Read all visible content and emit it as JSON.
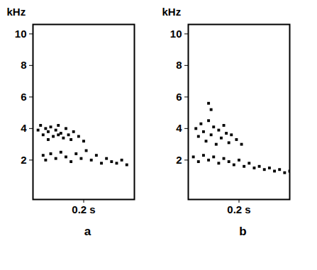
{
  "chart_data": [
    {
      "type": "scatter",
      "title": "a",
      "ylabel": "kHz",
      "color": "#000000",
      "marker": "square",
      "grid": false,
      "xlim": [
        0,
        0.4
      ],
      "xticks": [
        {
          "value": 0.2,
          "label": "0.2 s"
        }
      ],
      "ylim": [
        -0.5,
        10.6
      ],
      "yticks": [
        2,
        4,
        6,
        8,
        10
      ],
      "x": [
        0.02,
        0.03,
        0.04,
        0.05,
        0.06,
        0.07,
        0.08,
        0.09,
        0.1,
        0.11,
        0.12,
        0.13,
        0.14,
        0.15,
        0.16,
        0.18,
        0.2,
        0.06,
        0.1,
        0.04,
        0.05,
        0.07,
        0.09,
        0.11,
        0.13,
        0.15,
        0.17,
        0.19,
        0.21,
        0.23,
        0.25,
        0.27,
        0.29,
        0.31,
        0.33,
        0.35,
        0.37
      ],
      "values": [
        3.9,
        4.2,
        3.6,
        4.0,
        3.8,
        4.1,
        3.5,
        3.9,
        4.2,
        3.7,
        3.4,
        4.0,
        3.6,
        3.3,
        3.8,
        3.5,
        3.2,
        3.3,
        3.6,
        2.3,
        2.0,
        2.4,
        2.1,
        2.5,
        2.2,
        1.9,
        2.4,
        2.1,
        2.6,
        2.0,
        2.3,
        1.8,
        2.1,
        1.9,
        1.8,
        2.0,
        1.7
      ]
    },
    {
      "type": "scatter",
      "title": "b",
      "ylabel": "kHz",
      "color": "#000000",
      "marker": "square",
      "grid": false,
      "xlim": [
        0,
        0.4
      ],
      "xticks": [
        {
          "value": 0.2,
          "label": "0.2 s"
        }
      ],
      "ylim": [
        -0.5,
        10.6
      ],
      "yticks": [
        2,
        4,
        6,
        8,
        10
      ],
      "x": [
        0.03,
        0.04,
        0.05,
        0.06,
        0.07,
        0.08,
        0.09,
        0.1,
        0.11,
        0.12,
        0.13,
        0.14,
        0.15,
        0.16,
        0.17,
        0.19,
        0.21,
        0.08,
        0.09,
        0.02,
        0.04,
        0.06,
        0.08,
        0.1,
        0.12,
        0.14,
        0.16,
        0.18,
        0.2,
        0.22,
        0.24,
        0.26,
        0.28,
        0.3,
        0.32,
        0.34,
        0.36,
        0.38,
        0.4
      ],
      "values": [
        4.0,
        3.5,
        4.3,
        3.8,
        3.2,
        4.5,
        3.6,
        4.1,
        3.0,
        3.9,
        3.4,
        4.2,
        3.7,
        3.1,
        3.6,
        3.3,
        3.0,
        5.6,
        5.2,
        2.2,
        1.9,
        2.3,
        2.0,
        2.2,
        1.8,
        2.1,
        1.9,
        1.7,
        2.0,
        1.6,
        1.8,
        1.5,
        1.6,
        1.4,
        1.5,
        1.3,
        1.4,
        1.2,
        1.3
      ]
    }
  ]
}
